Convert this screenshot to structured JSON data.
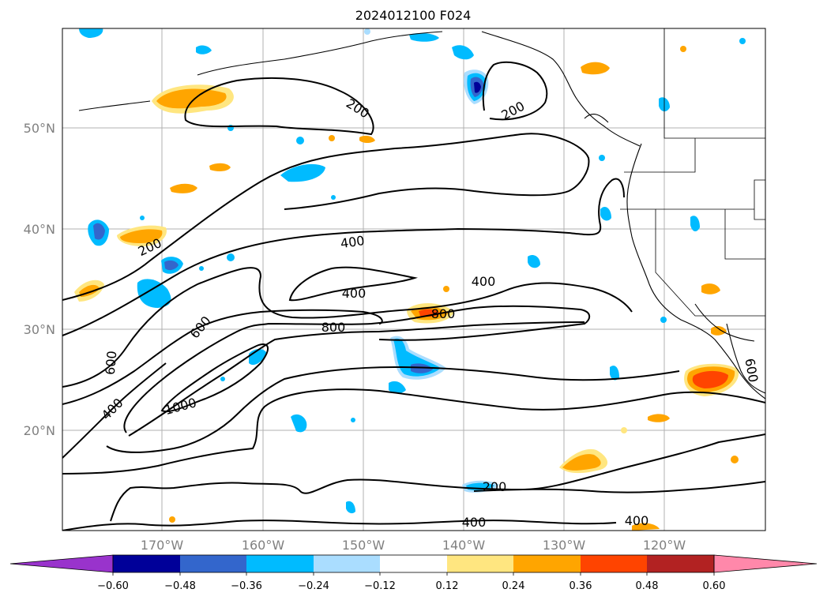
{
  "title": "2024012100 F024",
  "lat_labels": [
    "50°N",
    "40°N",
    "30°N",
    "20°N"
  ],
  "lon_labels": [
    "170°W",
    "160°W",
    "150°W",
    "140°W",
    "130°W",
    "120°W"
  ],
  "colorbar": {
    "ticks": [
      "−0.60",
      "−0.48",
      "−0.36",
      "−0.24",
      "−0.12",
      "0.12",
      "0.24",
      "0.36",
      "0.48",
      "0.60"
    ],
    "colors": [
      "#9933cc",
      "#000099",
      "#3366cc",
      "#00bbff",
      "#aaddff",
      "#ffffff",
      "#ffe680",
      "#ffa500",
      "#ff4400",
      "#b22222",
      "#ff88aa"
    ]
  },
  "contour_labels": [
    "200",
    "200",
    "200",
    "200",
    "400",
    "400",
    "400",
    "400",
    "400",
    "400",
    "600",
    "600",
    "600",
    "800",
    "800",
    "1000"
  ],
  "colors": {
    "grid": "#b0b0b0",
    "contour": "#000000",
    "coast": "#000000"
  }
}
